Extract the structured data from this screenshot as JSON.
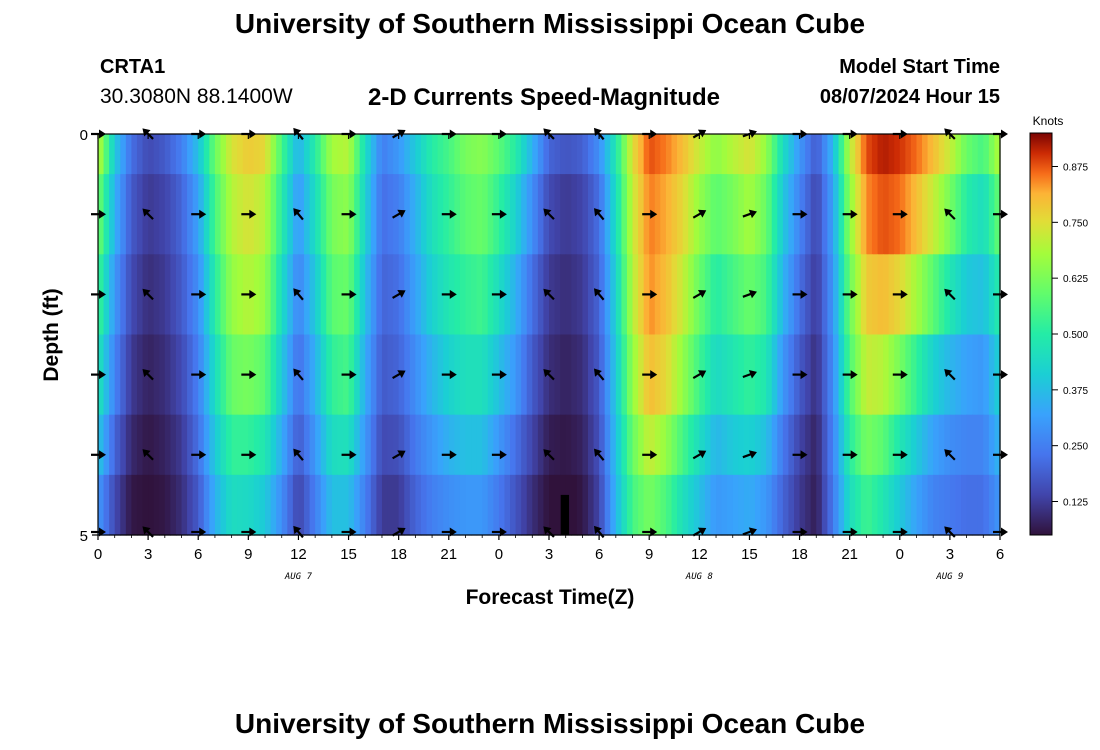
{
  "header": {
    "title": "University of Southern Mississippi Ocean Cube",
    "station_id": "CRTA1",
    "coords": "30.3080N  88.1400W",
    "subtitle": "2-D Currents Speed-Magnitude",
    "start_label": "Model Start Time",
    "start_value": "08/07/2024 Hour 15"
  },
  "footer": {
    "title": "University of Southern Mississippi Ocean Cube"
  },
  "chart_data": {
    "type": "heatmap",
    "title": "2-D Currents Speed-Magnitude",
    "xlabel": "Forecast Time(Z)",
    "ylabel": "Depth (ft)",
    "x_ticks": [
      "0",
      "3",
      "6",
      "9",
      "12",
      "15",
      "18",
      "21",
      "0",
      "3",
      "6",
      "9",
      "12",
      "15",
      "18",
      "21",
      "0",
      "3",
      "6"
    ],
    "y_ticks": [
      "0",
      "5"
    ],
    "date_labels": [
      {
        "label": "AUG 7",
        "hour": 12
      },
      {
        "label": "AUG 8",
        "hour": 36
      },
      {
        "label": "AUG 9",
        "hour": 51
      }
    ],
    "x_range_hours": [
      0,
      54
    ],
    "y_range_ft": [
      0,
      5
    ],
    "colorbar": {
      "unit": "Knots",
      "ticks": [
        "0.125",
        "0.250",
        "0.375",
        "0.500",
        "0.625",
        "0.750",
        "0.875"
      ],
      "range": [
        0.05,
        0.95
      ]
    },
    "hours": [
      0,
      1,
      2,
      3,
      4,
      5,
      6,
      7,
      8,
      9,
      10,
      11,
      12,
      13,
      14,
      15,
      16,
      17,
      18,
      19,
      20,
      21,
      22,
      23,
      24,
      25,
      26,
      27,
      28,
      29,
      30,
      31,
      32,
      33,
      34,
      35,
      36,
      37,
      38,
      39,
      40,
      41,
      42,
      43,
      44,
      45,
      46,
      47,
      48,
      49,
      50,
      51,
      52,
      53,
      54
    ],
    "rows": [
      {
        "depth": 0.0,
        "speeds": [
          0.72,
          0.4,
          0.22,
          0.15,
          0.18,
          0.25,
          0.38,
          0.6,
          0.74,
          0.78,
          0.76,
          0.55,
          0.35,
          0.5,
          0.68,
          0.7,
          0.45,
          0.25,
          0.3,
          0.4,
          0.5,
          0.55,
          0.62,
          0.64,
          0.58,
          0.5,
          0.35,
          0.2,
          0.17,
          0.19,
          0.28,
          0.48,
          0.75,
          0.88,
          0.85,
          0.8,
          0.72,
          0.65,
          0.7,
          0.74,
          0.66,
          0.45,
          0.3,
          0.18,
          0.36,
          0.7,
          0.88,
          0.92,
          0.9,
          0.86,
          0.8,
          0.72,
          0.6,
          0.55,
          0.7
        ]
      },
      {
        "depth": 1.0,
        "speeds": [
          0.62,
          0.35,
          0.18,
          0.12,
          0.14,
          0.2,
          0.32,
          0.55,
          0.7,
          0.74,
          0.7,
          0.5,
          0.3,
          0.45,
          0.62,
          0.65,
          0.42,
          0.22,
          0.25,
          0.35,
          0.46,
          0.52,
          0.58,
          0.6,
          0.52,
          0.42,
          0.28,
          0.15,
          0.12,
          0.14,
          0.22,
          0.45,
          0.72,
          0.85,
          0.82,
          0.76,
          0.66,
          0.58,
          0.62,
          0.68,
          0.6,
          0.4,
          0.26,
          0.14,
          0.32,
          0.65,
          0.84,
          0.88,
          0.86,
          0.8,
          0.72,
          0.62,
          0.5,
          0.45,
          0.6
        ]
      },
      {
        "depth": 2.0,
        "speeds": [
          0.55,
          0.3,
          0.15,
          0.1,
          0.12,
          0.18,
          0.28,
          0.5,
          0.66,
          0.7,
          0.66,
          0.45,
          0.26,
          0.4,
          0.58,
          0.6,
          0.38,
          0.2,
          0.22,
          0.32,
          0.42,
          0.48,
          0.52,
          0.54,
          0.45,
          0.35,
          0.22,
          0.12,
          0.1,
          0.12,
          0.2,
          0.42,
          0.7,
          0.84,
          0.8,
          0.72,
          0.6,
          0.5,
          0.55,
          0.6,
          0.55,
          0.36,
          0.22,
          0.12,
          0.3,
          0.6,
          0.78,
          0.8,
          0.76,
          0.68,
          0.58,
          0.48,
          0.4,
          0.38,
          0.5
        ]
      },
      {
        "depth": 3.0,
        "speeds": [
          0.48,
          0.26,
          0.12,
          0.08,
          0.1,
          0.15,
          0.25,
          0.45,
          0.6,
          0.62,
          0.58,
          0.4,
          0.22,
          0.35,
          0.52,
          0.55,
          0.34,
          0.18,
          0.2,
          0.28,
          0.36,
          0.42,
          0.46,
          0.46,
          0.38,
          0.3,
          0.18,
          0.1,
          0.08,
          0.1,
          0.18,
          0.4,
          0.66,
          0.8,
          0.76,
          0.66,
          0.54,
          0.44,
          0.48,
          0.52,
          0.48,
          0.3,
          0.18,
          0.1,
          0.28,
          0.56,
          0.72,
          0.7,
          0.62,
          0.52,
          0.42,
          0.36,
          0.32,
          0.3,
          0.42
        ]
      },
      {
        "depth": 4.0,
        "speeds": [
          0.4,
          0.2,
          0.09,
          0.06,
          0.08,
          0.12,
          0.22,
          0.4,
          0.52,
          0.52,
          0.48,
          0.34,
          0.18,
          0.3,
          0.45,
          0.46,
          0.3,
          0.15,
          0.16,
          0.24,
          0.3,
          0.35,
          0.38,
          0.38,
          0.3,
          0.22,
          0.14,
          0.07,
          0.06,
          0.08,
          0.16,
          0.38,
          0.6,
          0.72,
          0.66,
          0.55,
          0.45,
          0.36,
          0.4,
          0.42,
          0.38,
          0.24,
          0.14,
          0.08,
          0.26,
          0.5,
          0.62,
          0.58,
          0.48,
          0.4,
          0.32,
          0.28,
          0.26,
          0.26,
          0.36
        ]
      },
      {
        "depth": 4.5,
        "speeds": [
          0.3,
          0.15,
          0.06,
          0.05,
          0.06,
          0.1,
          0.18,
          0.35,
          0.45,
          0.44,
          0.4,
          0.28,
          0.14,
          0.25,
          0.38,
          0.38,
          0.25,
          0.12,
          0.12,
          0.2,
          0.25,
          0.28,
          0.3,
          0.3,
          0.24,
          0.17,
          0.1,
          0.05,
          0.04,
          0.06,
          0.14,
          0.36,
          0.55,
          0.62,
          0.56,
          0.46,
          0.38,
          0.3,
          0.32,
          0.34,
          0.3,
          0.2,
          0.12,
          0.07,
          0.24,
          0.45,
          0.54,
          0.48,
          0.4,
          0.32,
          0.26,
          0.24,
          0.22,
          0.22,
          0.3
        ]
      }
    ],
    "vector_times": [
      0,
      3,
      6,
      9,
      12,
      15,
      18,
      21,
      24,
      27,
      30,
      33,
      36,
      39,
      42,
      45,
      48,
      51,
      54
    ],
    "vector_depths": [
      0,
      1,
      2,
      3,
      4,
      5
    ],
    "vector_directions_deg": [
      0,
      225,
      0,
      0,
      230,
      0,
      330,
      0,
      0,
      225,
      230,
      0,
      330,
      340,
      0,
      0,
      0,
      225,
      0
    ],
    "missing_block": {
      "hour_from": 27.7,
      "hour_to": 28.2,
      "depth_from": 4.5,
      "depth_to": 5.0
    }
  }
}
